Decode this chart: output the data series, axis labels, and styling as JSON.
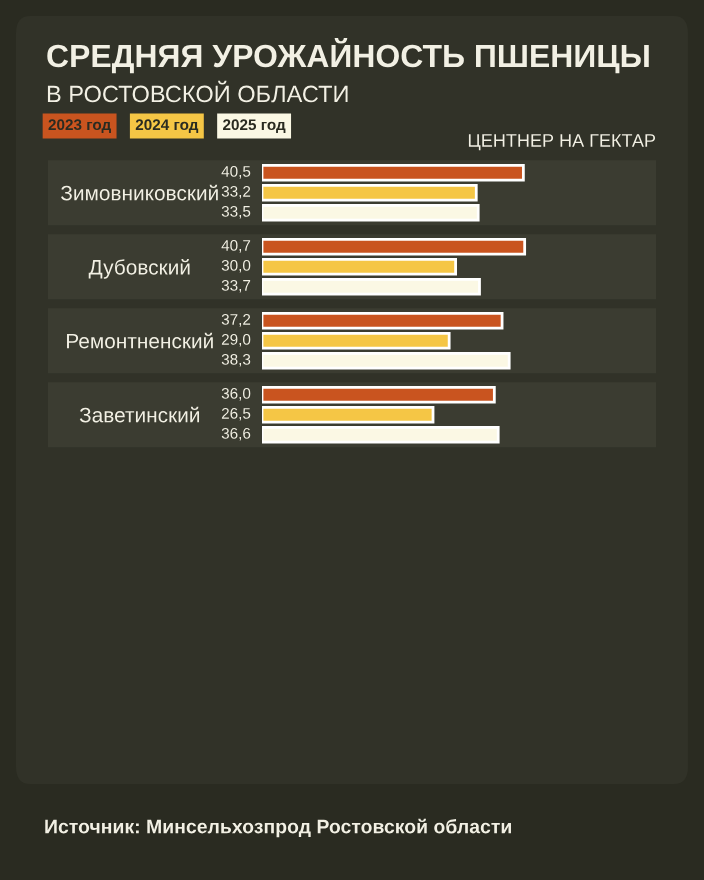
{
  "chart_data": {
    "type": "bar",
    "orientation": "horizontal",
    "title": "СРЕДНЯЯ УРОЖАЙНОСТЬ ПШЕНИЦЫ",
    "subtitle": "В РОСТОВСКОЙ ОБЛАСТИ",
    "xlabel": "ЦЕНТНЕР НА ГЕКТАР",
    "categories": [
      "Зимовниковский",
      "Дубовский",
      "Ремонтненский",
      "Заветинский"
    ],
    "series": [
      {
        "name": "2023 год",
        "color": "#c9541f",
        "values": [
          40.5,
          40.7,
          37.2,
          36.0
        ],
        "value_labels": [
          "40,5",
          "40,7",
          "37,2",
          "36,0"
        ]
      },
      {
        "name": "2024 год",
        "color": "#f5c645",
        "values": [
          33.2,
          30.0,
          29.0,
          26.5
        ],
        "value_labels": [
          "33,2",
          "30,0",
          "29,0",
          "26,5"
        ]
      },
      {
        "name": "2025 год",
        "color": "#fbf8e4",
        "values": [
          33.5,
          33.7,
          38.3,
          36.6
        ],
        "value_labels": [
          "33,5",
          "33,7",
          "38,3",
          "36,6"
        ]
      }
    ],
    "legend": "top left",
    "annotations": [
      "Источник: Минсельхозпрод Ростовской области"
    ]
  }
}
